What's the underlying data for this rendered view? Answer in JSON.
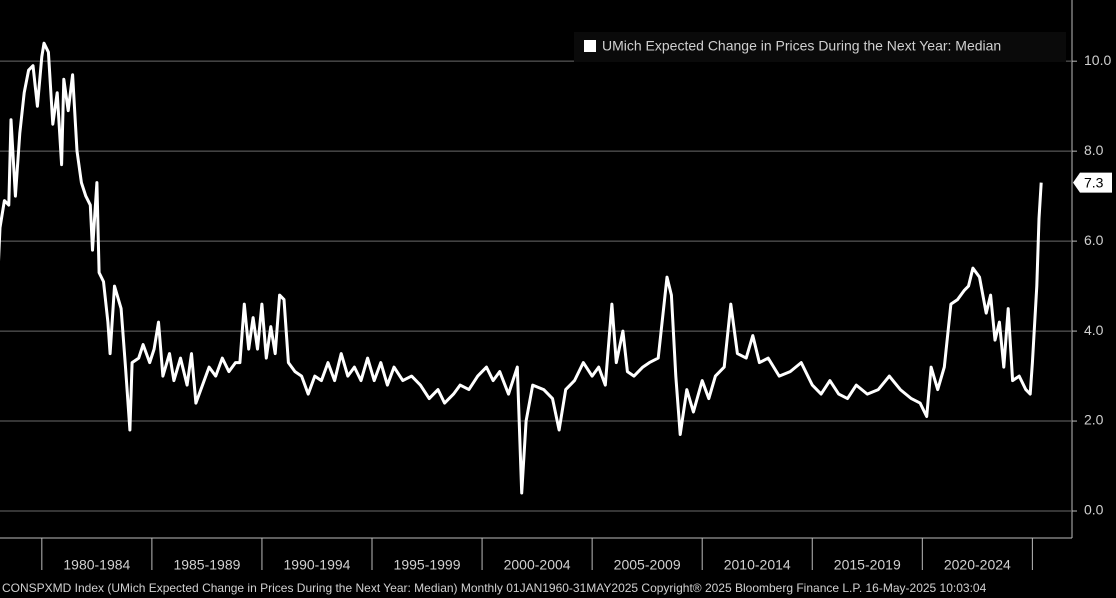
{
  "chart_data": {
    "type": "line",
    "legend": "UMich Expected Change in Prices During the Next Year: Median",
    "legend_position": "upper right",
    "footer": "CONSPXMD Index (UMich Expected Change in Prices During the Next Year: Median)  Monthly 01JAN1960-31MAY2025 Copyright® 2025 Bloomberg Finance L.P. 16-May-2025 10:03:04",
    "x": [
      1978.0,
      1978.1,
      1978.3,
      1978.5,
      1978.6,
      1978.8,
      1979.0,
      1979.2,
      1979.4,
      1979.6,
      1979.8,
      1980.0,
      1980.1,
      1980.3,
      1980.5,
      1980.7,
      1980.9,
      1981.0,
      1981.2,
      1981.4,
      1981.6,
      1981.8,
      1982.0,
      1982.2,
      1982.3,
      1982.5,
      1982.6,
      1982.8,
      1983.0,
      1983.1,
      1983.3,
      1983.6,
      1983.8,
      1984.0,
      1984.1,
      1984.4,
      1984.6,
      1984.9,
      1985.1,
      1985.3,
      1985.5,
      1985.8,
      1986.0,
      1986.3,
      1986.6,
      1986.8,
      1987.0,
      1987.3,
      1987.6,
      1987.9,
      1988.2,
      1988.5,
      1988.8,
      1989.0,
      1989.2,
      1989.4,
      1989.6,
      1989.8,
      1990.0,
      1990.2,
      1990.4,
      1990.6,
      1990.8,
      1991.0,
      1991.2,
      1991.5,
      1991.8,
      1992.1,
      1992.4,
      1992.7,
      1993.0,
      1993.3,
      1993.6,
      1993.9,
      1994.2,
      1994.5,
      1994.8,
      1995.1,
      1995.4,
      1995.7,
      1996.0,
      1996.4,
      1996.8,
      1997.2,
      1997.6,
      1998.0,
      1998.3,
      1998.7,
      1999.0,
      1999.4,
      1999.8,
      2000.2,
      2000.5,
      2000.8,
      2001.2,
      2001.6,
      2001.8,
      2002.0,
      2002.3,
      2002.8,
      2003.2,
      2003.5,
      2003.8,
      2004.2,
      2004.6,
      2005.0,
      2005.3,
      2005.6,
      2005.9,
      2006.1,
      2006.4,
      2006.6,
      2006.9,
      2007.3,
      2007.6,
      2008.0,
      2008.4,
      2008.6,
      2008.8,
      2009.0,
      2009.3,
      2009.6,
      2010.0,
      2010.3,
      2010.6,
      2011.0,
      2011.3,
      2011.6,
      2012.0,
      2012.3,
      2012.6,
      2013.0,
      2013.5,
      2014.0,
      2014.5,
      2015.0,
      2015.4,
      2015.8,
      2016.2,
      2016.6,
      2017.0,
      2017.5,
      2018.0,
      2018.5,
      2019.0,
      2019.5,
      2019.9,
      2020.2,
      2020.4,
      2020.7,
      2021.0,
      2021.3,
      2021.6,
      2021.9,
      2022.1,
      2022.3,
      2022.6,
      2022.9,
      2023.1,
      2023.3,
      2023.5,
      2023.7,
      2023.9,
      2024.1,
      2024.4,
      2024.7,
      2024.9,
      2025.0,
      2025.2,
      2025.3,
      2025.4
    ],
    "series": [
      {
        "name": "UMich Expected Change in Prices During the Next Year: Median",
        "color": "#ffffff",
        "values": [
          5.2,
          6.3,
          6.9,
          6.8,
          8.7,
          7.0,
          8.4,
          9.3,
          9.8,
          9.9,
          9.0,
          10.1,
          10.4,
          10.2,
          8.6,
          9.3,
          7.7,
          9.6,
          8.9,
          9.7,
          8.0,
          7.3,
          7.0,
          6.8,
          5.8,
          7.3,
          5.3,
          5.1,
          4.2,
          3.5,
          5.0,
          4.5,
          3.2,
          1.8,
          3.3,
          3.4,
          3.7,
          3.3,
          3.6,
          4.2,
          3.0,
          3.5,
          2.9,
          3.4,
          2.8,
          3.5,
          2.4,
          2.8,
          3.2,
          3.0,
          3.4,
          3.1,
          3.3,
          3.3,
          4.6,
          3.6,
          4.3,
          3.6,
          4.6,
          3.4,
          4.1,
          3.5,
          4.8,
          4.7,
          3.3,
          3.1,
          3.0,
          2.6,
          3.0,
          2.9,
          3.3,
          2.9,
          3.5,
          3.0,
          3.2,
          2.9,
          3.4,
          2.9,
          3.3,
          2.8,
          3.2,
          2.9,
          3.0,
          2.8,
          2.5,
          2.7,
          2.4,
          2.6,
          2.8,
          2.7,
          3.0,
          3.2,
          2.9,
          3.1,
          2.6,
          3.2,
          0.4,
          2.0,
          2.8,
          2.7,
          2.5,
          1.8,
          2.7,
          2.9,
          3.3,
          3.0,
          3.2,
          2.8,
          4.6,
          3.3,
          4.0,
          3.1,
          3.0,
          3.2,
          3.3,
          3.4,
          5.2,
          4.8,
          3.0,
          1.7,
          2.7,
          2.2,
          2.9,
          2.5,
          3.0,
          3.2,
          4.6,
          3.5,
          3.4,
          3.9,
          3.3,
          3.4,
          3.0,
          3.1,
          3.3,
          2.8,
          2.6,
          2.9,
          2.6,
          2.5,
          2.8,
          2.6,
          2.7,
          3.0,
          2.7,
          2.5,
          2.4,
          2.1,
          3.2,
          2.7,
          3.2,
          4.6,
          4.7,
          4.9,
          5.0,
          5.4,
          5.2,
          4.4,
          4.8,
          3.8,
          4.2,
          3.2,
          4.5,
          2.9,
          3.0,
          2.7,
          2.6,
          3.3,
          5.0,
          6.5,
          7.3
        ],
        "last_value_label": "7.3"
      }
    ],
    "xlim": [
      1978.1,
      2026.8
    ],
    "xticks": [
      1980,
      1985,
      1990,
      1995,
      2000,
      2005,
      2010,
      2015,
      2020,
      2025
    ],
    "x_periods": [
      {
        "start": 1980,
        "end": 1985,
        "label": "1980-1984"
      },
      {
        "start": 1985,
        "end": 1990,
        "label": "1985-1989"
      },
      {
        "start": 1990,
        "end": 1995,
        "label": "1990-1994"
      },
      {
        "start": 1995,
        "end": 2000,
        "label": "1995-1999"
      },
      {
        "start": 2000,
        "end": 2005,
        "label": "2000-2004"
      },
      {
        "start": 2005,
        "end": 2010,
        "label": "2005-2009"
      },
      {
        "start": 2010,
        "end": 2015,
        "label": "2010-2014"
      },
      {
        "start": 2015,
        "end": 2020,
        "label": "2015-2019"
      },
      {
        "start": 2020,
        "end": 2025,
        "label": "2020-2024"
      }
    ],
    "ylim": [
      -0.6,
      11.36
    ],
    "yticks": [
      {
        "value": 0,
        "label": "0.0"
      },
      {
        "value": 2,
        "label": "2.0"
      },
      {
        "value": 4,
        "label": "4.0"
      },
      {
        "value": 6,
        "label": "6.0"
      },
      {
        "value": 8,
        "label": "8.0"
      },
      {
        "value": 10,
        "label": "10.0"
      }
    ],
    "y_axis_side": "right",
    "grid": true
  }
}
